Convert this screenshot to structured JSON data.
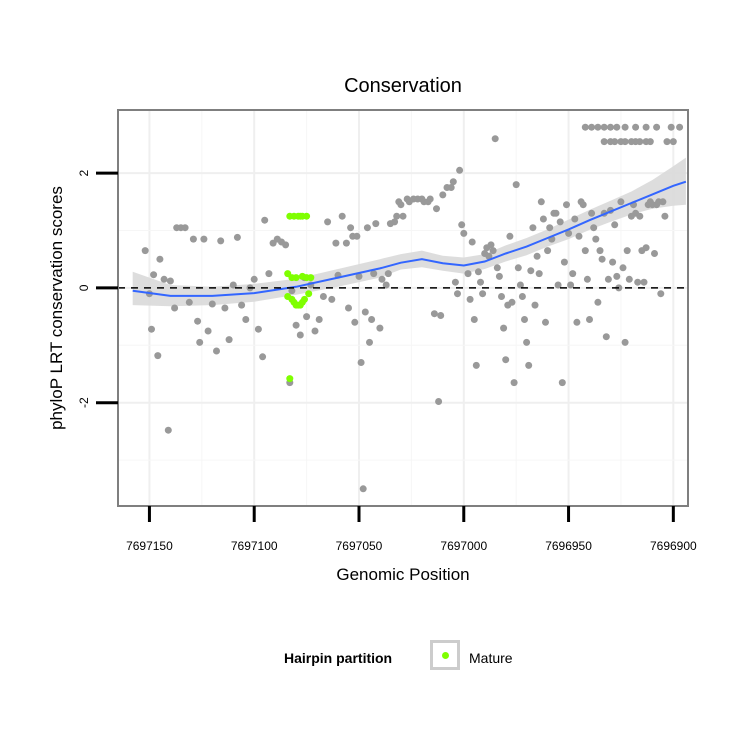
{
  "chart_data": {
    "type": "scatter",
    "title": "Conservation",
    "xlabel": "Genomic Position",
    "ylabel": "phyloP LRT conservation scores",
    "xlim": [
      7697165,
      7696893
    ],
    "ylim": [
      -3.8,
      3.1
    ],
    "x_reversed": true,
    "x_ticks": [
      7697150,
      7697100,
      7697050,
      7697000,
      7696950,
      7696900
    ],
    "x_tick_labels": [
      "7697150",
      "7697100",
      "7697050",
      "7697000",
      "7696950",
      "7696900"
    ],
    "y_ticks": [
      -2,
      0,
      2
    ],
    "y_tick_labels": [
      "-2",
      "0",
      "2"
    ],
    "grid": true,
    "reference_line": {
      "y": 0,
      "style": "dashed"
    },
    "legend": {
      "title": "Hairpin partition",
      "position": "bottom",
      "entries": [
        {
          "label": "Mature",
          "color": "#7fff00"
        }
      ]
    },
    "series": [
      {
        "name": "",
        "color": "#999999",
        "points": [
          [
            7697152,
            0.65
          ],
          [
            7697150,
            -0.1
          ],
          [
            7697149,
            -0.72
          ],
          [
            7697148,
            0.23
          ],
          [
            7697146,
            -1.18
          ],
          [
            7697145,
            0.5
          ],
          [
            7697143,
            0.15
          ],
          [
            7697141,
            -2.48
          ],
          [
            7697140,
            0.12
          ],
          [
            7697138,
            -0.35
          ],
          [
            7697137,
            1.05
          ],
          [
            7697135,
            1.05
          ],
          [
            7697133,
            1.05
          ],
          [
            7697131,
            -0.25
          ],
          [
            7697129,
            0.85
          ],
          [
            7697127,
            -0.58
          ],
          [
            7697126,
            -0.95
          ],
          [
            7697124,
            0.85
          ],
          [
            7697122,
            -0.75
          ],
          [
            7697120,
            -0.28
          ],
          [
            7697118,
            -1.1
          ],
          [
            7697116,
            0.82
          ],
          [
            7697114,
            -0.35
          ],
          [
            7697112,
            -0.9
          ],
          [
            7697110,
            0.05
          ],
          [
            7697108,
            0.88
          ],
          [
            7697106,
            -0.3
          ],
          [
            7697104,
            -0.55
          ],
          [
            7697102,
            0.0
          ],
          [
            7697100,
            0.15
          ],
          [
            7697098,
            -0.72
          ],
          [
            7697096,
            -1.2
          ],
          [
            7697095,
            1.18
          ],
          [
            7697093,
            0.25
          ],
          [
            7697091,
            0.78
          ],
          [
            7697089,
            0.85
          ],
          [
            7697087,
            0.8
          ],
          [
            7697085,
            0.75
          ],
          [
            7697083,
            -1.65
          ],
          [
            7697082,
            -0.05
          ],
          [
            7697080,
            -0.65
          ],
          [
            7697078,
            -0.82
          ],
          [
            7697076,
            0.18
          ],
          [
            7697075,
            -0.5
          ],
          [
            7697073,
            0.05
          ],
          [
            7697071,
            -0.75
          ],
          [
            7697069,
            -0.55
          ],
          [
            7697067,
            -0.15
          ],
          [
            7697065,
            1.15
          ],
          [
            7697063,
            -0.2
          ],
          [
            7697061,
            0.78
          ],
          [
            7697060,
            0.22
          ],
          [
            7697058,
            1.25
          ],
          [
            7697056,
            0.78
          ],
          [
            7697055,
            -0.35
          ],
          [
            7697054,
            1.05
          ],
          [
            7697053,
            0.9
          ],
          [
            7697052,
            -0.6
          ],
          [
            7697051,
            0.9
          ],
          [
            7697050,
            0.2
          ],
          [
            7697049,
            -1.3
          ],
          [
            7697048,
            -3.5
          ],
          [
            7697047,
            -0.42
          ],
          [
            7697046,
            1.05
          ],
          [
            7697045,
            -0.95
          ],
          [
            7697044,
            -0.55
          ],
          [
            7697043,
            0.25
          ],
          [
            7697042,
            1.12
          ],
          [
            7697040,
            -0.7
          ],
          [
            7697039,
            0.15
          ],
          [
            7697037,
            0.05
          ],
          [
            7697036,
            0.25
          ],
          [
            7697035,
            1.12
          ],
          [
            7697033,
            1.15
          ],
          [
            7697032,
            1.25
          ],
          [
            7697031,
            1.5
          ],
          [
            7697030,
            1.45
          ],
          [
            7697029,
            1.25
          ],
          [
            7697027,
            1.55
          ],
          [
            7697026,
            1.5
          ],
          [
            7697024,
            1.55
          ],
          [
            7697022,
            1.55
          ],
          [
            7697020,
            1.55
          ],
          [
            7697019,
            1.5
          ],
          [
            7697017,
            1.5
          ],
          [
            7697016,
            1.55
          ],
          [
            7697014,
            -0.45
          ],
          [
            7697013,
            1.38
          ],
          [
            7697012,
            -1.98
          ],
          [
            7697011,
            -0.48
          ],
          [
            7697010,
            1.62
          ],
          [
            7697008,
            1.75
          ],
          [
            7697006,
            1.75
          ],
          [
            7697005,
            1.85
          ],
          [
            7697004,
            0.1
          ],
          [
            7697003,
            -0.1
          ],
          [
            7697002,
            2.05
          ],
          [
            7697001,
            1.1
          ],
          [
            7697000,
            0.95
          ],
          [
            7696998,
            0.25
          ],
          [
            7696997,
            -0.2
          ],
          [
            7696996,
            0.8
          ],
          [
            7696995,
            -0.55
          ],
          [
            7696994,
            -1.35
          ],
          [
            7696993,
            0.28
          ],
          [
            7696992,
            0.1
          ],
          [
            7696991,
            -0.1
          ],
          [
            7696990,
            0.6
          ],
          [
            7696989,
            0.7
          ],
          [
            7696988,
            0.55
          ],
          [
            7696987,
            0.75
          ],
          [
            7696986,
            0.65
          ],
          [
            7696985,
            2.6
          ],
          [
            7696984,
            0.35
          ],
          [
            7696983,
            0.2
          ],
          [
            7696982,
            -0.15
          ],
          [
            7696981,
            -0.7
          ],
          [
            7696980,
            -1.25
          ],
          [
            7696979,
            -0.3
          ],
          [
            7696978,
            0.9
          ],
          [
            7696977,
            -0.25
          ],
          [
            7696976,
            -1.65
          ],
          [
            7696975,
            1.8
          ],
          [
            7696974,
            0.35
          ],
          [
            7696973,
            0.05
          ],
          [
            7696972,
            -0.15
          ],
          [
            7696971,
            -0.55
          ],
          [
            7696970,
            -0.95
          ],
          [
            7696969,
            -1.35
          ],
          [
            7696968,
            0.3
          ],
          [
            7696967,
            1.05
          ],
          [
            7696966,
            -0.3
          ],
          [
            7696965,
            0.55
          ],
          [
            7696964,
            0.25
          ],
          [
            7696963,
            1.5
          ],
          [
            7696962,
            1.2
          ],
          [
            7696961,
            -0.6
          ],
          [
            7696960,
            0.65
          ],
          [
            7696959,
            1.05
          ],
          [
            7696958,
            0.85
          ],
          [
            7696957,
            1.3
          ],
          [
            7696956,
            1.3
          ],
          [
            7696955,
            0.05
          ],
          [
            7696954,
            1.15
          ],
          [
            7696953,
            -1.65
          ],
          [
            7696952,
            0.45
          ],
          [
            7696951,
            1.45
          ],
          [
            7696950,
            0.95
          ],
          [
            7696949,
            0.05
          ],
          [
            7696948,
            0.25
          ],
          [
            7696947,
            1.2
          ],
          [
            7696946,
            -0.6
          ],
          [
            7696945,
            0.9
          ],
          [
            7696944,
            1.5
          ],
          [
            7696943,
            1.45
          ],
          [
            7696942,
            0.65
          ],
          [
            7696941,
            0.15
          ],
          [
            7696940,
            -0.55
          ],
          [
            7696939,
            1.3
          ],
          [
            7696938,
            1.05
          ],
          [
            7696937,
            0.85
          ],
          [
            7696936,
            -0.25
          ],
          [
            7696935,
            0.65
          ],
          [
            7696934,
            0.5
          ],
          [
            7696933,
            1.3
          ],
          [
            7696932,
            -0.85
          ],
          [
            7696931,
            0.15
          ],
          [
            7696930,
            1.35
          ],
          [
            7696929,
            0.45
          ],
          [
            7696928,
            1.1
          ],
          [
            7696927,
            0.2
          ],
          [
            7696926,
            0.0
          ],
          [
            7696925,
            1.5
          ],
          [
            7696924,
            0.35
          ],
          [
            7696923,
            -0.95
          ],
          [
            7696922,
            0.65
          ],
          [
            7696921,
            0.15
          ],
          [
            7696920,
            1.25
          ],
          [
            7696919,
            1.45
          ],
          [
            7696918,
            1.3
          ],
          [
            7696917,
            0.1
          ],
          [
            7696916,
            1.25
          ],
          [
            7696915,
            0.65
          ],
          [
            7696914,
            0.1
          ],
          [
            7696913,
            0.7
          ],
          [
            7696912,
            1.45
          ],
          [
            7696911,
            1.5
          ],
          [
            7696910,
            1.45
          ],
          [
            7696909,
            0.6
          ],
          [
            7696908,
            1.45
          ],
          [
            7696907,
            1.5
          ],
          [
            7696906,
            -0.1
          ],
          [
            7696905,
            1.5
          ],
          [
            7696904,
            1.25
          ],
          [
            7696942,
            2.8
          ],
          [
            7696939,
            2.8
          ],
          [
            7696936,
            2.8
          ],
          [
            7696933,
            2.8
          ],
          [
            7696930,
            2.8
          ],
          [
            7696927,
            2.8
          ],
          [
            7696923,
            2.8
          ],
          [
            7696918,
            2.8
          ],
          [
            7696913,
            2.8
          ],
          [
            7696908,
            2.8
          ],
          [
            7696901,
            2.8
          ],
          [
            7696897,
            2.8
          ],
          [
            7696933,
            2.55
          ],
          [
            7696930,
            2.55
          ],
          [
            7696928,
            2.55
          ],
          [
            7696925,
            2.55
          ],
          [
            7696923,
            2.55
          ],
          [
            7696920,
            2.55
          ],
          [
            7696918,
            2.55
          ],
          [
            7696916,
            2.55
          ],
          [
            7696913,
            2.55
          ],
          [
            7696911,
            2.55
          ],
          [
            7696903,
            2.55
          ],
          [
            7696900,
            2.55
          ]
        ]
      },
      {
        "name": "Mature",
        "color": "#7fff00",
        "points": [
          [
            7697083,
            1.25
          ],
          [
            7697081,
            1.25
          ],
          [
            7697079,
            1.25
          ],
          [
            7697078,
            1.25
          ],
          [
            7697077,
            1.25
          ],
          [
            7697075,
            1.25
          ],
          [
            7697084,
            0.25
          ],
          [
            7697082,
            0.18
          ],
          [
            7697080,
            0.18
          ],
          [
            7697077,
            0.2
          ],
          [
            7697075,
            0.18
          ],
          [
            7697073,
            0.18
          ],
          [
            7697084,
            -0.15
          ],
          [
            7697082,
            -0.2
          ],
          [
            7697081,
            -0.25
          ],
          [
            7697080,
            -0.3
          ],
          [
            7697079,
            -0.3
          ],
          [
            7697078,
            -0.3
          ],
          [
            7697077,
            -0.25
          ],
          [
            7697076,
            -0.2
          ],
          [
            7697074,
            -0.1
          ],
          [
            7697083,
            -1.58
          ]
        ]
      }
    ],
    "smooth": {
      "color": "#3366ff",
      "band_color": "#d9d9d9",
      "x": [
        7697158,
        7697140,
        7697120,
        7697100,
        7697080,
        7697060,
        7697040,
        7697030,
        7697020,
        7697010,
        7697000,
        7696990,
        7696980,
        7696970,
        7696960,
        7696950,
        7696940,
        7696930,
        7696920,
        7696910,
        7696900,
        7696894
      ],
      "y": [
        -0.05,
        -0.14,
        -0.14,
        -0.09,
        0.02,
        0.18,
        0.34,
        0.44,
        0.5,
        0.43,
        0.39,
        0.46,
        0.6,
        0.72,
        0.87,
        1.02,
        1.18,
        1.33,
        1.48,
        1.63,
        1.78,
        1.85
      ],
      "ymin": [
        -0.3,
        -0.32,
        -0.3,
        -0.24,
        -0.12,
        0.02,
        0.18,
        0.32,
        0.36,
        0.3,
        0.25,
        0.33,
        0.46,
        0.57,
        0.72,
        0.85,
        1.01,
        1.15,
        1.28,
        1.38,
        1.43,
        1.45
      ],
      "ymax": [
        0.28,
        0.05,
        0.02,
        0.07,
        0.16,
        0.33,
        0.5,
        0.59,
        0.65,
        0.56,
        0.53,
        0.59,
        0.74,
        0.87,
        1.02,
        1.19,
        1.36,
        1.52,
        1.68,
        1.88,
        2.12,
        2.27
      ]
    }
  }
}
